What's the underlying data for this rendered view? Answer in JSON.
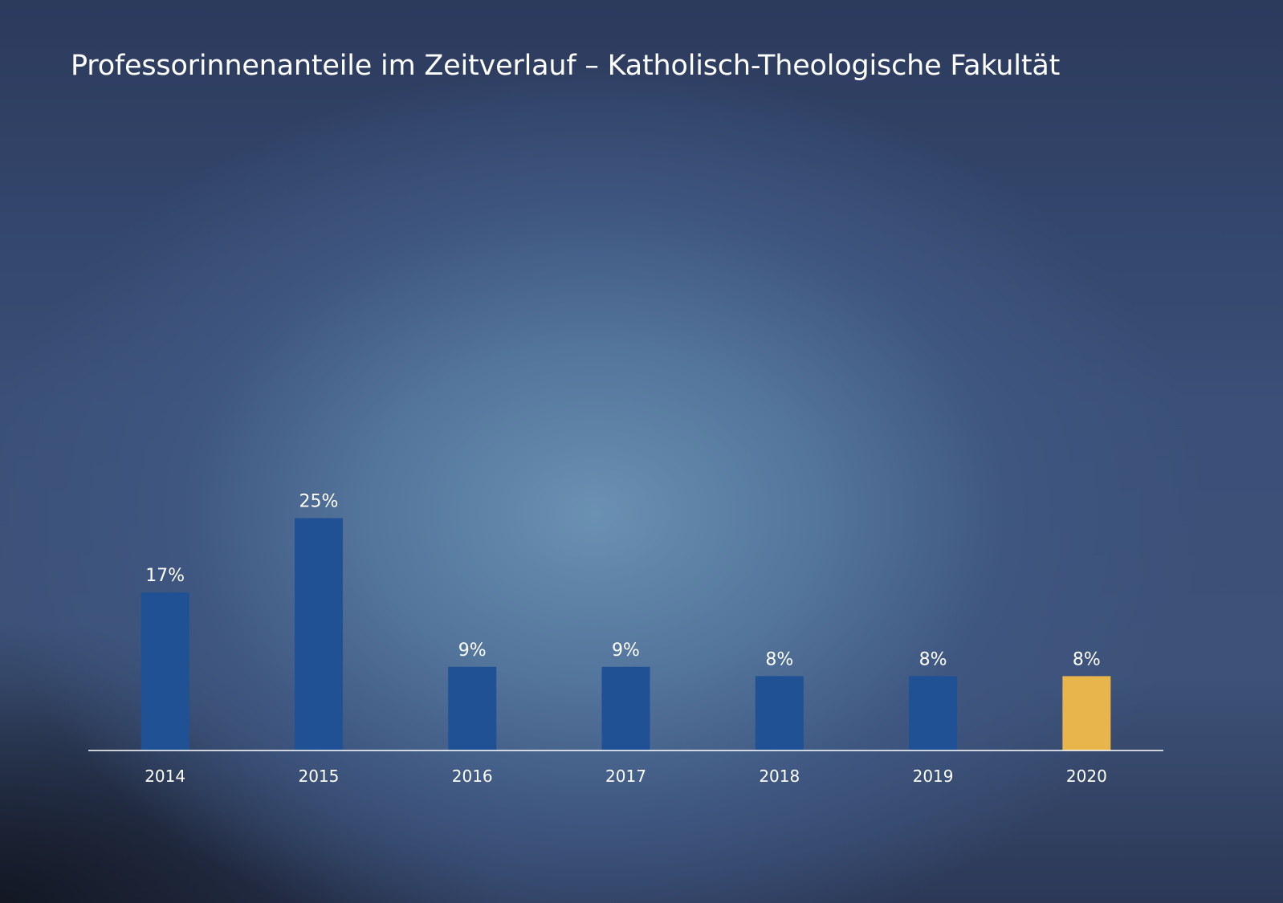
{
  "chart_data": {
    "type": "bar",
    "title": "Professorinnenanteile im Zeitverlauf – Katholisch-Theologische Fakultät",
    "categories": [
      "2014",
      "2015",
      "2016",
      "2017",
      "2018",
      "2019",
      "2020"
    ],
    "values": [
      17,
      25,
      9,
      9,
      8,
      8,
      8
    ],
    "value_labels": [
      "17%",
      "25%",
      "9%",
      "9%",
      "8%",
      "8%",
      "8%"
    ],
    "unit": "%",
    "xlabel": "",
    "ylabel": "",
    "ylim": [
      0,
      50
    ],
    "grid": false,
    "legend": "none",
    "colors": {
      "default": "#1f5194",
      "highlight": "#e8b54d",
      "axis": "#ffffff"
    },
    "highlight_category": "2020"
  }
}
